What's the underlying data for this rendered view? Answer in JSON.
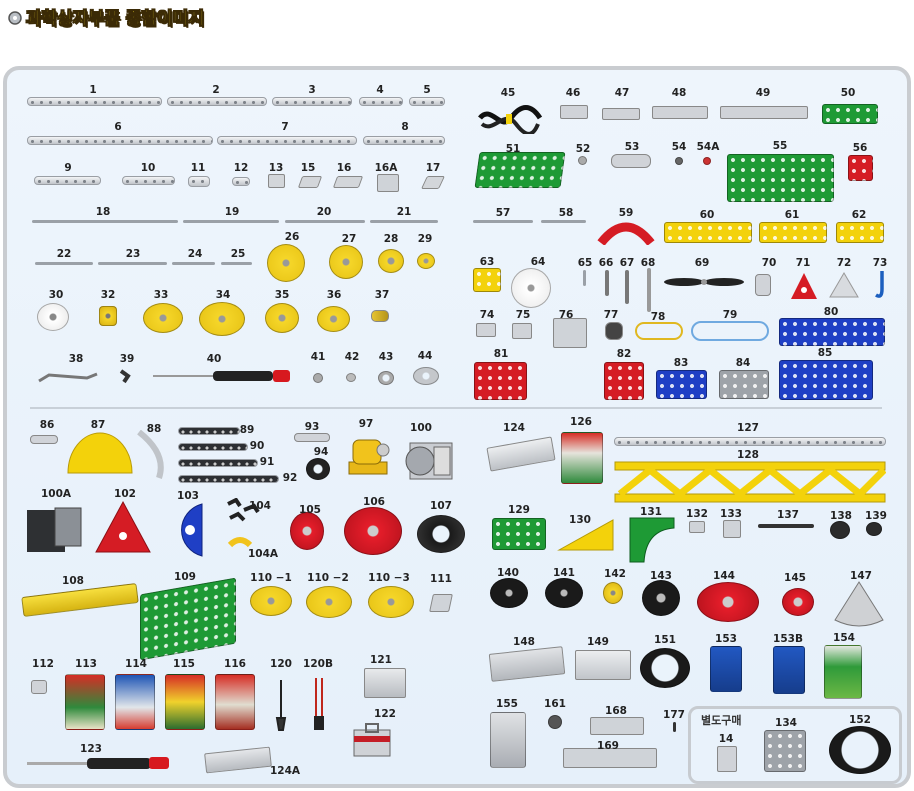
{
  "title": "과학상자부품 종합이미지",
  "extra_section_label": "별도구매",
  "colors": {
    "frame_border": "#c9ccd0",
    "panel_bg": "#eaf3fb",
    "title_fill": "#f6e22b",
    "title_outline": "#3b2a06"
  },
  "part_numbers": [
    "1",
    "2",
    "3",
    "4",
    "5",
    "6",
    "7",
    "8",
    "9",
    "10",
    "11",
    "12",
    "13",
    "15",
    "16",
    "16A",
    "17",
    "18",
    "19",
    "20",
    "21",
    "22",
    "23",
    "24",
    "25",
    "26",
    "27",
    "28",
    "29",
    "30",
    "32",
    "33",
    "34",
    "35",
    "36",
    "37",
    "38",
    "39",
    "40",
    "41",
    "42",
    "43",
    "44",
    "45",
    "46",
    "47",
    "48",
    "49",
    "50",
    "51",
    "52",
    "53",
    "54",
    "54A",
    "55",
    "56",
    "57",
    "58",
    "59",
    "60",
    "61",
    "62",
    "63",
    "64",
    "65",
    "66",
    "67",
    "68",
    "69",
    "70",
    "71",
    "72",
    "73",
    "74",
    "75",
    "76",
    "77",
    "78",
    "79",
    "80",
    "81",
    "82",
    "83",
    "84",
    "85",
    "86",
    "87",
    "88",
    "89",
    "90",
    "91",
    "92",
    "93",
    "94",
    "97",
    "100",
    "100A",
    "102",
    "103",
    "104",
    "104A",
    "105",
    "106",
    "107",
    "108",
    "109",
    "110 −1",
    "110 −2",
    "110 −3",
    "111",
    "112",
    "113",
    "114",
    "115",
    "116",
    "120",
    "120B",
    "121",
    "122",
    "123",
    "124",
    "124A",
    "126",
    "127",
    "128",
    "129",
    "130",
    "131",
    "132",
    "133",
    "137",
    "138",
    "139",
    "140",
    "141",
    "142",
    "143",
    "144",
    "145",
    "147",
    "148",
    "149",
    "151",
    "153",
    "153B",
    "154",
    "155",
    "161",
    "168",
    "169",
    "177",
    "14",
    "134",
    "152"
  ]
}
